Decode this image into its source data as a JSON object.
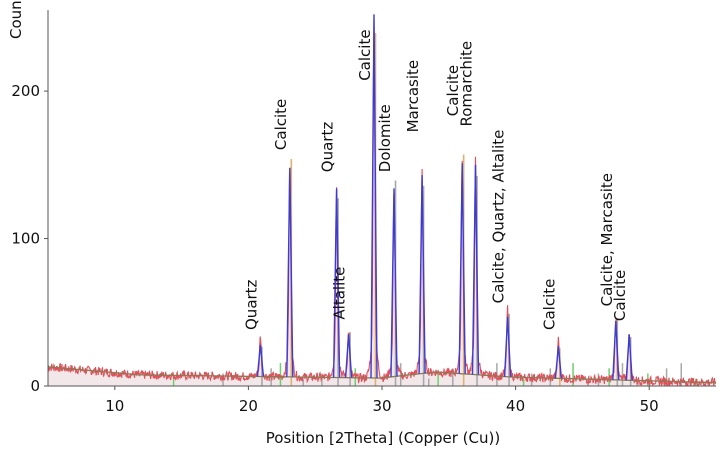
{
  "chart_data": {
    "type": "line",
    "title": "",
    "xlabel": "Position [2Theta] (Copper (Cu))",
    "ylabel": "Counts",
    "xlim": [
      5,
      55
    ],
    "ylim": [
      0,
      255
    ],
    "xticks": [
      10,
      20,
      30,
      40,
      50
    ],
    "yticks": [
      0,
      100,
      200
    ],
    "grid": false,
    "colors": {
      "observed": "#e0505a",
      "fit_stick": "#3b3bd6",
      "background": "#8a7a55",
      "reference_grey": "#a8a8a8",
      "reference_green": "#6fcf6f",
      "reference_tan": "#e0b070",
      "axis": "#555555"
    },
    "peaks": [
      {
        "x": 20.9,
        "y": 28
      },
      {
        "x": 23.1,
        "y": 148
      },
      {
        "x": 26.6,
        "y": 134
      },
      {
        "x": 27.5,
        "y": 35
      },
      {
        "x": 29.4,
        "y": 252
      },
      {
        "x": 30.9,
        "y": 134
      },
      {
        "x": 33.0,
        "y": 143
      },
      {
        "x": 36.0,
        "y": 151
      },
      {
        "x": 37.0,
        "y": 150
      },
      {
        "x": 39.4,
        "y": 47
      },
      {
        "x": 43.2,
        "y": 27
      },
      {
        "x": 47.5,
        "y": 44
      },
      {
        "x": 48.5,
        "y": 35
      }
    ],
    "annotations": [
      {
        "text": "Quartz",
        "x": 20.9,
        "y": 38
      },
      {
        "text": "Calcite",
        "x": 23.1,
        "y": 160
      },
      {
        "text": "Quartz",
        "x": 26.6,
        "y": 145
      },
      {
        "text": "Altalite",
        "x": 27.5,
        "y": 45
      },
      {
        "text": "Calcite",
        "x": 29.4,
        "y": 207
      },
      {
        "text": "Dolomite",
        "x": 30.9,
        "y": 145
      },
      {
        "text": "Marcasite",
        "x": 33.0,
        "y": 172
      },
      {
        "text": "Calcite",
        "x": 36.0,
        "y": 183
      },
      {
        "text": "Romarchite",
        "x": 37.0,
        "y": 176
      },
      {
        "text": "Calcite, Quartz, Altalite",
        "x": 39.4,
        "y": 56
      },
      {
        "text": "Calcite",
        "x": 43.2,
        "y": 38
      },
      {
        "text": "Calcite, Marcasite",
        "x": 47.5,
        "y": 54
      },
      {
        "text": "Calcite",
        "x": 48.5,
        "y": 44
      }
    ]
  }
}
